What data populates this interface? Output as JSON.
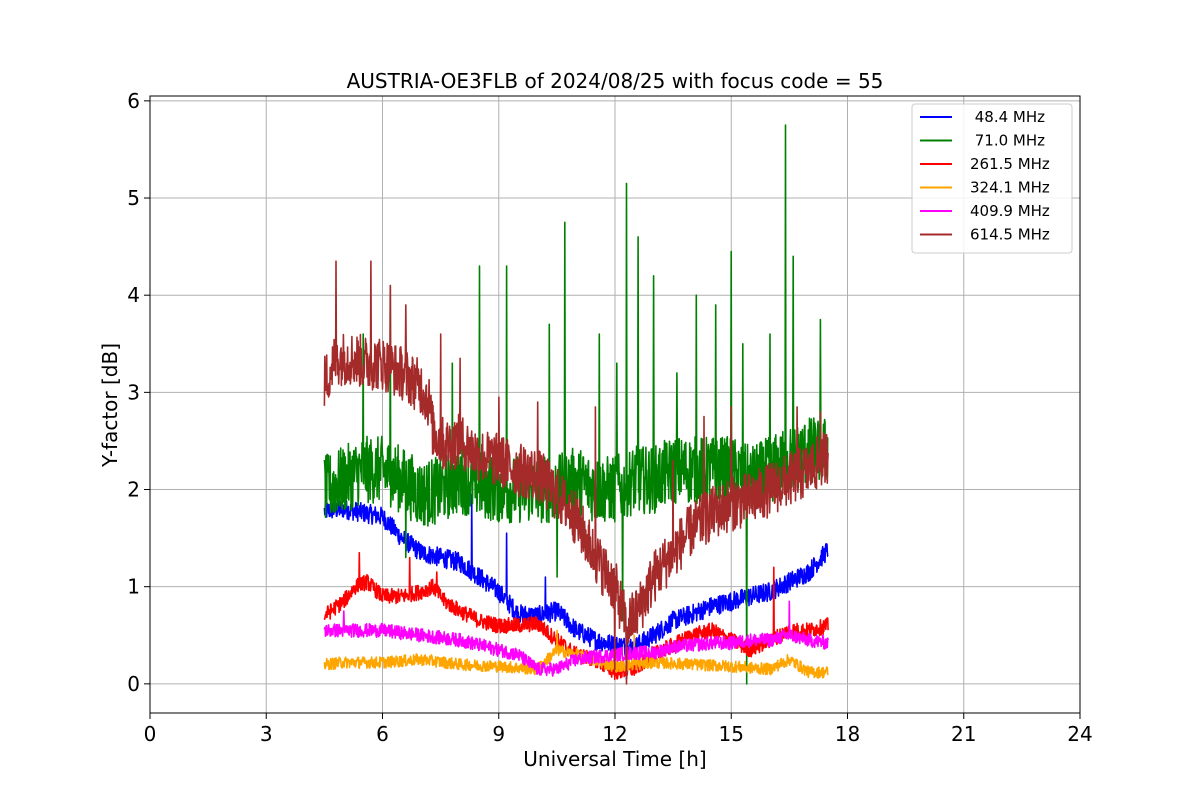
{
  "chart_data": {
    "type": "line",
    "title": "AUSTRIA-OE3FLB of 2024/08/25 with focus code = 55",
    "xlabel": "Universal Time [h]",
    "ylabel": "Y-factor [dB]",
    "xlim": [
      0,
      24
    ],
    "ylim": [
      -0.3,
      6.05
    ],
    "xticks": [
      0,
      3,
      6,
      9,
      12,
      15,
      18,
      21,
      24
    ],
    "yticks": [
      0,
      1,
      2,
      3,
      4,
      5,
      6
    ],
    "grid": true,
    "legend_position": "top-right",
    "x_range_of_data": [
      4.5,
      17.5
    ],
    "series": [
      {
        "name": " 48.4 MHz",
        "color": "#0000ff",
        "base": [
          [
            4.5,
            1.78
          ],
          [
            5,
            1.8
          ],
          [
            5.5,
            1.76
          ],
          [
            6,
            1.72
          ],
          [
            6.5,
            1.5
          ],
          [
            7,
            1.35
          ],
          [
            7.5,
            1.3
          ],
          [
            8,
            1.25
          ],
          [
            8.5,
            1.1
          ],
          [
            9,
            0.95
          ],
          [
            9.5,
            0.72
          ],
          [
            10,
            0.7
          ],
          [
            10.5,
            0.75
          ],
          [
            11,
            0.55
          ],
          [
            11.5,
            0.45
          ],
          [
            12,
            0.4
          ],
          [
            12.5,
            0.38
          ],
          [
            13,
            0.5
          ],
          [
            13.5,
            0.65
          ],
          [
            14,
            0.72
          ],
          [
            14.5,
            0.8
          ],
          [
            15,
            0.85
          ],
          [
            15.5,
            0.9
          ],
          [
            16,
            0.95
          ],
          [
            16.5,
            1.05
          ],
          [
            17,
            1.15
          ],
          [
            17.5,
            1.38
          ]
        ],
        "noise": 0.1,
        "spikes": [
          [
            8.3,
            1.95
          ],
          [
            9.2,
            1.55
          ],
          [
            10.2,
            1.1
          ],
          [
            12.3,
            0.05
          ]
        ]
      },
      {
        "name": " 71.0 MHz",
        "color": "#008000",
        "base": [
          [
            4.5,
            2.0
          ],
          [
            5,
            2.1
          ],
          [
            5.5,
            2.2
          ],
          [
            6,
            2.2
          ],
          [
            6.5,
            2.1
          ],
          [
            7,
            1.95
          ],
          [
            7.5,
            2.0
          ],
          [
            8,
            2.1
          ],
          [
            8.5,
            2.05
          ],
          [
            9,
            2.0
          ],
          [
            9.5,
            2.0
          ],
          [
            10,
            2.0
          ],
          [
            10.5,
            2.0
          ],
          [
            11,
            2.1
          ],
          [
            11.5,
            2.0
          ],
          [
            12,
            2.0
          ],
          [
            12.5,
            2.1
          ],
          [
            13,
            2.1
          ],
          [
            13.5,
            2.2
          ],
          [
            14,
            2.2
          ],
          [
            14.5,
            2.2
          ],
          [
            15,
            2.2
          ],
          [
            15.5,
            2.1
          ],
          [
            16,
            2.2
          ],
          [
            16.5,
            2.3
          ],
          [
            17,
            2.4
          ],
          [
            17.5,
            2.4
          ]
        ],
        "noise": 0.35,
        "spikes": [
          [
            5.5,
            3.6
          ],
          [
            6.2,
            4.1
          ],
          [
            7.8,
            3.3
          ],
          [
            8.5,
            4.3
          ],
          [
            9.2,
            4.3
          ],
          [
            10.3,
            3.7
          ],
          [
            10.7,
            4.75
          ],
          [
            11.6,
            3.6
          ],
          [
            12.05,
            3.3
          ],
          [
            12.3,
            5.15
          ],
          [
            12.6,
            4.6
          ],
          [
            13.0,
            4.2
          ],
          [
            13.6,
            3.2
          ],
          [
            14.1,
            4.0
          ],
          [
            14.6,
            3.9
          ],
          [
            15.0,
            4.45
          ],
          [
            15.3,
            3.5
          ],
          [
            16.0,
            3.6
          ],
          [
            16.4,
            5.75
          ],
          [
            16.6,
            4.4
          ],
          [
            17.3,
            3.75
          ]
        ],
        "dips": [
          [
            5.5,
            1.7
          ],
          [
            6.6,
            1.3
          ],
          [
            10.5,
            1.1
          ],
          [
            12.2,
            0.65
          ],
          [
            15.4,
            0.0
          ]
        ]
      },
      {
        "name": "261.5 MHz",
        "color": "#ff0000",
        "base": [
          [
            4.5,
            0.7
          ],
          [
            5,
            0.85
          ],
          [
            5.3,
            1.0
          ],
          [
            5.6,
            1.05
          ],
          [
            6,
            0.9
          ],
          [
            6.5,
            0.9
          ],
          [
            7,
            0.95
          ],
          [
            7.3,
            1.0
          ],
          [
            7.6,
            0.85
          ],
          [
            8,
            0.75
          ],
          [
            8.5,
            0.65
          ],
          [
            9,
            0.6
          ],
          [
            9.5,
            0.6
          ],
          [
            10,
            0.62
          ],
          [
            10.5,
            0.45
          ],
          [
            11,
            0.3
          ],
          [
            11.5,
            0.25
          ],
          [
            12,
            0.12
          ],
          [
            12.5,
            0.15
          ],
          [
            13,
            0.3
          ],
          [
            13.5,
            0.4
          ],
          [
            14,
            0.5
          ],
          [
            14.5,
            0.55
          ],
          [
            15,
            0.45
          ],
          [
            15.5,
            0.35
          ],
          [
            16,
            0.45
          ],
          [
            16.5,
            0.55
          ],
          [
            17,
            0.55
          ],
          [
            17.5,
            0.6
          ]
        ],
        "noise": 0.08,
        "spikes": [
          [
            5.4,
            1.35
          ],
          [
            6.7,
            1.3
          ],
          [
            7.4,
            1.15
          ],
          [
            16.1,
            1.2
          ]
        ]
      },
      {
        "name": "324.1 MHz",
        "color": "#ffa500",
        "base": [
          [
            4.5,
            0.2
          ],
          [
            5,
            0.22
          ],
          [
            6,
            0.22
          ],
          [
            7,
            0.25
          ],
          [
            8,
            0.2
          ],
          [
            9,
            0.18
          ],
          [
            10,
            0.15
          ],
          [
            10.5,
            0.35
          ],
          [
            11,
            0.3
          ],
          [
            12,
            0.18
          ],
          [
            13,
            0.22
          ],
          [
            14,
            0.2
          ],
          [
            15,
            0.18
          ],
          [
            16,
            0.15
          ],
          [
            16.5,
            0.25
          ],
          [
            17,
            0.12
          ],
          [
            17.5,
            0.12
          ]
        ],
        "noise": 0.06,
        "spikes": [
          [
            10.5,
            0.55
          ],
          [
            12.5,
            0.5
          ]
        ]
      },
      {
        "name": "409.9 MHz",
        "color": "#ff00ff",
        "base": [
          [
            4.5,
            0.55
          ],
          [
            5,
            0.55
          ],
          [
            6,
            0.55
          ],
          [
            7,
            0.5
          ],
          [
            8,
            0.45
          ],
          [
            9,
            0.35
          ],
          [
            9.5,
            0.3
          ],
          [
            10,
            0.15
          ],
          [
            10.5,
            0.15
          ],
          [
            11,
            0.25
          ],
          [
            11.5,
            0.28
          ],
          [
            12,
            0.3
          ],
          [
            12.5,
            0.32
          ],
          [
            13,
            0.32
          ],
          [
            13.5,
            0.38
          ],
          [
            14,
            0.4
          ],
          [
            14.5,
            0.42
          ],
          [
            15,
            0.42
          ],
          [
            15.5,
            0.45
          ],
          [
            16,
            0.45
          ],
          [
            16.5,
            0.5
          ],
          [
            17,
            0.45
          ],
          [
            17.5,
            0.42
          ]
        ],
        "noise": 0.07,
        "spikes": [
          [
            5.0,
            0.75
          ],
          [
            16.5,
            0.85
          ]
        ]
      },
      {
        "name": "614.5 MHz",
        "color": "#a52a2a",
        "base": [
          [
            4.5,
            3.1
          ],
          [
            4.8,
            3.35
          ],
          [
            5.2,
            3.35
          ],
          [
            5.6,
            3.3
          ],
          [
            6,
            3.3
          ],
          [
            6.5,
            3.2
          ],
          [
            7,
            3.05
          ],
          [
            7.2,
            2.9
          ],
          [
            7.3,
            2.6
          ],
          [
            7.6,
            2.45
          ],
          [
            8,
            2.5
          ],
          [
            8.5,
            2.35
          ],
          [
            9,
            2.3
          ],
          [
            9.5,
            2.2
          ],
          [
            10,
            2.15
          ],
          [
            10.5,
            1.95
          ],
          [
            11,
            1.7
          ],
          [
            11.5,
            1.3
          ],
          [
            12,
            1.0
          ],
          [
            12.3,
            0.6
          ],
          [
            12.6,
            0.75
          ],
          [
            13,
            1.1
          ],
          [
            13.5,
            1.35
          ],
          [
            14,
            1.6
          ],
          [
            14.5,
            1.75
          ],
          [
            15,
            1.85
          ],
          [
            15.5,
            1.9
          ],
          [
            16,
            2.0
          ],
          [
            16.5,
            2.1
          ],
          [
            17,
            2.2
          ],
          [
            17.5,
            2.35
          ]
        ],
        "noise": 0.28,
        "spikes": [
          [
            4.8,
            4.35
          ],
          [
            5.7,
            4.35
          ],
          [
            6.2,
            4.1
          ],
          [
            6.6,
            3.9
          ],
          [
            7.5,
            3.6
          ],
          [
            8.0,
            3.35
          ],
          [
            9.0,
            2.95
          ],
          [
            10.0,
            2.9
          ],
          [
            11.5,
            2.85
          ],
          [
            13.5,
            2.3
          ],
          [
            14.3,
            2.75
          ],
          [
            15.0,
            2.85
          ],
          [
            16.7,
            2.85
          ],
          [
            17.3,
            2.8
          ]
        ],
        "dips": [
          [
            12.3,
            0.0
          ],
          [
            12.0,
            0.15
          ]
        ]
      }
    ]
  }
}
